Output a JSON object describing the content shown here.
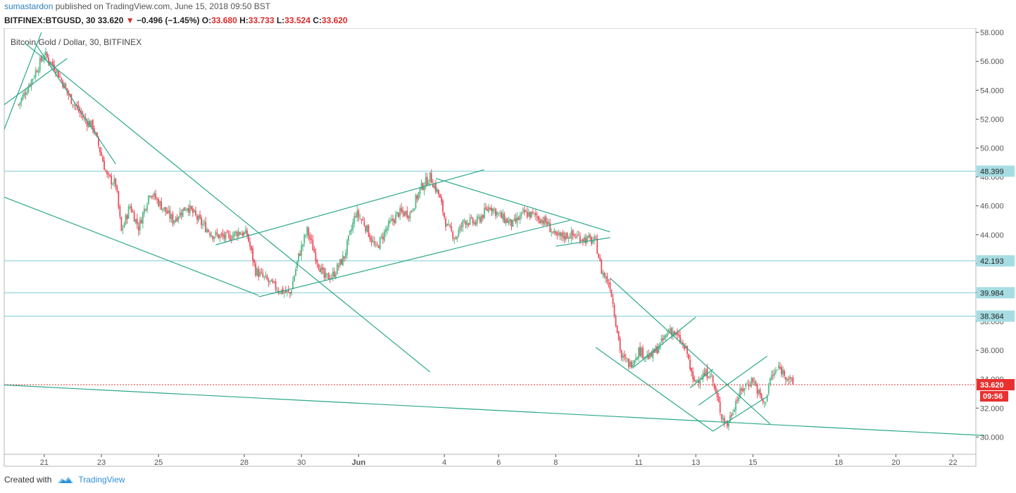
{
  "header": {
    "author": "sumastardon",
    "published": "published on TradingView.com, June 15, 2018 09:50 BST"
  },
  "ohlc": {
    "symbol": "BITFINEX:BTGUSD, 30",
    "last": "33.620",
    "arrow": "▼",
    "change": "−0.496 (−1.45%)",
    "o_label": "O:",
    "o": "33.680",
    "h_label": "H:",
    "h": "33.733",
    "l_label": "L:",
    "l": "33.524",
    "c_label": "C:",
    "c": "33.620"
  },
  "footer": {
    "created": "Created with",
    "brand": "TradingView",
    "logo_icon": "tradingview-logo-icon"
  },
  "colors": {
    "up": "#53b987",
    "down": "#eb4d5c",
    "trendline": "#2aa889",
    "hline": "#7ecbd3",
    "hline_badge": "#a6dde3",
    "price_badge": "#e8312f",
    "axis": "#555555",
    "border": "#b7b7b7"
  },
  "chart_data": {
    "type": "candlestick",
    "title": "Bitcoin Gold / Dollar, 30, BITFINEX",
    "y_ticks": [
      30,
      32,
      34,
      36,
      38,
      40,
      42,
      44,
      46,
      48,
      50,
      52,
      54,
      56,
      58
    ],
    "y_tick_labels": [
      "30.000",
      "32.000",
      "34.000",
      "36.000",
      "38.000",
      "40.000",
      "42.000",
      "44.000",
      "46.000",
      "48.000",
      "50.000",
      "52.000",
      "54.000",
      "56.000",
      "58.000"
    ],
    "ylim": [
      28.8,
      58.3
    ],
    "x_index_range": [
      -0.5,
      33.5
    ],
    "x_ticks": [
      {
        "label": "21",
        "i": 0.9
      },
      {
        "label": "23",
        "i": 2.9
      },
      {
        "label": "25",
        "i": 4.9
      },
      {
        "label": "28",
        "i": 7.9
      },
      {
        "label": "30",
        "i": 9.9
      },
      {
        "label": "Jun",
        "i": 11.9
      },
      {
        "label": "4",
        "i": 14.9
      },
      {
        "label": "6",
        "i": 16.8
      },
      {
        "label": "8",
        "i": 18.8
      },
      {
        "label": "11",
        "i": 21.7
      },
      {
        "label": "13",
        "i": 23.7
      },
      {
        "label": "15",
        "i": 25.7
      },
      {
        "label": "18",
        "i": 28.7
      },
      {
        "label": "20",
        "i": 30.7
      },
      {
        "label": "22",
        "i": 32.7
      }
    ],
    "price_path": [
      [
        0,
        53.0
      ],
      [
        0.4,
        54.5
      ],
      [
        0.9,
        56.5
      ],
      [
        1.3,
        55.5
      ],
      [
        1.8,
        53.5
      ],
      [
        2.3,
        52.0
      ],
      [
        2.6,
        51.5
      ],
      [
        2.9,
        49.5
      ],
      [
        3.1,
        48.0
      ],
      [
        3.4,
        47.5
      ],
      [
        3.6,
        44.2
      ],
      [
        3.9,
        46.0
      ],
      [
        4.2,
        44.5
      ],
      [
        4.6,
        47.0
      ],
      [
        5.0,
        46.0
      ],
      [
        5.4,
        45.0
      ],
      [
        5.9,
        46.0
      ],
      [
        6.3,
        45.0
      ],
      [
        6.8,
        44.0
      ],
      [
        7.3,
        43.8
      ],
      [
        7.7,
        44.2
      ],
      [
        8.0,
        44.0
      ],
      [
        8.3,
        41.5
      ],
      [
        8.7,
        40.8
      ],
      [
        9.1,
        40.2
      ],
      [
        9.5,
        39.9
      ],
      [
        9.8,
        42.5
      ],
      [
        10.1,
        44.3
      ],
      [
        10.4,
        42.5
      ],
      [
        10.7,
        41.0
      ],
      [
        11.0,
        41.2
      ],
      [
        11.4,
        42.5
      ],
      [
        11.8,
        45.5
      ],
      [
        12.1,
        44.8
      ],
      [
        12.5,
        43.0
      ],
      [
        12.9,
        44.5
      ],
      [
        13.3,
        45.5
      ],
      [
        13.7,
        45.5
      ],
      [
        14.1,
        47.3
      ],
      [
        14.4,
        48.0
      ],
      [
        14.7,
        46.8
      ],
      [
        15.0,
        44.5
      ],
      [
        15.3,
        43.8
      ],
      [
        15.6,
        45.0
      ],
      [
        16.0,
        44.8
      ],
      [
        16.5,
        46.0
      ],
      [
        16.9,
        45.2
      ],
      [
        17.3,
        44.7
      ],
      [
        17.7,
        45.5
      ],
      [
        18.1,
        45.3
      ],
      [
        18.5,
        44.8
      ],
      [
        18.8,
        43.8
      ],
      [
        19.3,
        44.0
      ],
      [
        19.7,
        43.8
      ],
      [
        20.2,
        43.5
      ],
      [
        20.4,
        41.5
      ],
      [
        20.7,
        40.5
      ],
      [
        20.9,
        38.0
      ],
      [
        21.1,
        35.5
      ],
      [
        21.4,
        35.0
      ],
      [
        21.7,
        36.0
      ],
      [
        22.1,
        35.5
      ],
      [
        22.5,
        36.5
      ],
      [
        22.8,
        37.5
      ],
      [
        23.1,
        36.8
      ],
      [
        23.4,
        35.8
      ],
      [
        23.6,
        33.8
      ],
      [
        23.9,
        34.2
      ],
      [
        24.2,
        34.5
      ],
      [
        24.4,
        33.0
      ],
      [
        24.6,
        31.5
      ],
      [
        24.8,
        30.8
      ],
      [
        25.1,
        32.5
      ],
      [
        25.4,
        33.5
      ],
      [
        25.7,
        34.0
      ],
      [
        25.9,
        33.0
      ],
      [
        26.1,
        32.2
      ],
      [
        26.3,
        34.0
      ],
      [
        26.6,
        34.8
      ],
      [
        26.9,
        34.2
      ],
      [
        27.1,
        33.6
      ]
    ],
    "trendlines": [
      {
        "from": [
          -0.5,
          51.3
        ],
        "to": [
          0.8,
          58.0
        ]
      },
      {
        "from": [
          -0.5,
          53.0
        ],
        "to": [
          1.7,
          56.2
        ]
      },
      {
        "from": [
          0.6,
          57.2
        ],
        "to": [
          3.4,
          48.9
        ]
      },
      {
        "from": [
          0.2,
          57.3
        ],
        "to": [
          14.4,
          34.5
        ]
      },
      {
        "from": [
          -0.5,
          46.6
        ],
        "to": [
          8.4,
          39.8
        ]
      },
      {
        "from": [
          6.9,
          43.3
        ],
        "to": [
          16.3,
          48.5
        ]
      },
      {
        "from": [
          8.4,
          39.7
        ],
        "to": [
          19.3,
          45.0
        ]
      },
      {
        "from": [
          14.6,
          47.9
        ],
        "to": [
          20.7,
          44.2
        ]
      },
      {
        "from": [
          18.8,
          43.2
        ],
        "to": [
          20.7,
          43.8
        ]
      },
      {
        "from": [
          20.7,
          41.0
        ],
        "to": [
          26.3,
          30.9
        ]
      },
      {
        "from": [
          20.2,
          36.2
        ],
        "to": [
          24.3,
          30.4
        ]
      },
      {
        "from": [
          21.5,
          34.8
        ],
        "to": [
          23.7,
          38.3
        ]
      },
      {
        "from": [
          23.5,
          33.4
        ],
        "to": [
          24.3,
          34.7
        ]
      },
      {
        "from": [
          23.8,
          32.2
        ],
        "to": [
          26.2,
          35.6
        ]
      },
      {
        "from": [
          24.3,
          30.4
        ],
        "to": [
          26.2,
          32.8
        ]
      },
      {
        "from": [
          -0.5,
          33.6
        ],
        "to": [
          33.8,
          30.1
        ]
      }
    ],
    "horizontal_levels": [
      {
        "value": 48.399,
        "label": "48.399"
      },
      {
        "value": 42.193,
        "label": "42.193"
      },
      {
        "value": 39.984,
        "label": "39.984"
      },
      {
        "value": 38.364,
        "label": "38.364"
      }
    ],
    "last_price": {
      "value": 33.62,
      "label": "33.620",
      "countdown": "09:56"
    }
  }
}
